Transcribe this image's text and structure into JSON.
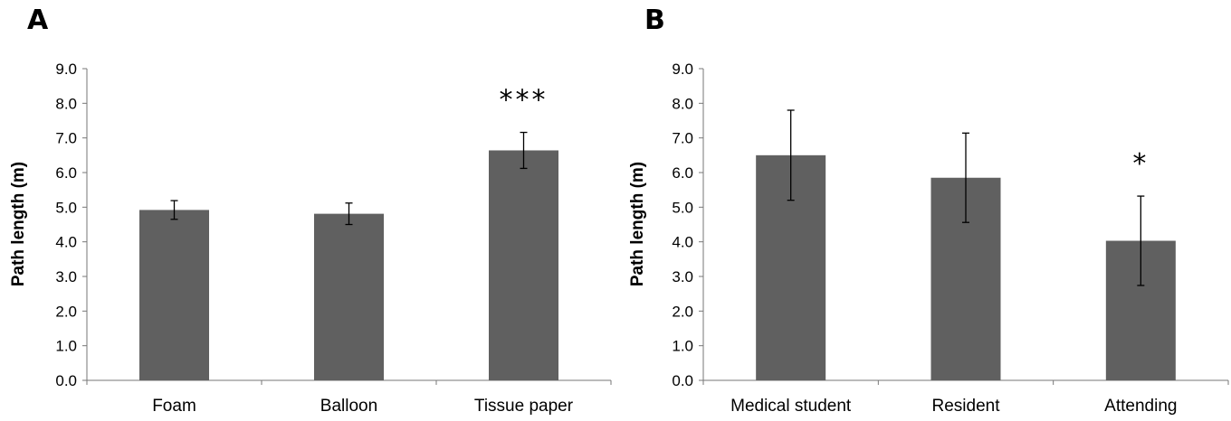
{
  "chart_data": [
    {
      "type": "bar",
      "panel": "A",
      "categories": [
        "Foam",
        "Balloon",
        "Tissue paper"
      ],
      "values": [
        4.92,
        4.81,
        6.64
      ],
      "errors": [
        0.27,
        0.31,
        0.52
      ],
      "annotations": [
        "",
        "",
        "***"
      ],
      "ylabel": "Path length (m)",
      "xlabel": "",
      "ylim": [
        0,
        9
      ],
      "yticks": [
        "0.0",
        "1.0",
        "2.0",
        "3.0",
        "4.0",
        "5.0",
        "6.0",
        "7.0",
        "8.0",
        "9.0"
      ],
      "grid": false,
      "color": "#606060"
    },
    {
      "type": "bar",
      "panel": "B",
      "categories": [
        "Medical student",
        "Resident",
        "Attending"
      ],
      "values": [
        6.5,
        5.85,
        4.03
      ],
      "errors": [
        1.3,
        1.29,
        1.29
      ],
      "annotations": [
        "",
        "",
        "*"
      ],
      "ylabel": "Path length (m)",
      "xlabel": "",
      "ylim": [
        0,
        9
      ],
      "yticks": [
        "0.0",
        "1.0",
        "2.0",
        "3.0",
        "4.0",
        "5.0",
        "6.0",
        "7.0",
        "8.0",
        "9.0"
      ],
      "grid": false,
      "color": "#606060"
    }
  ]
}
